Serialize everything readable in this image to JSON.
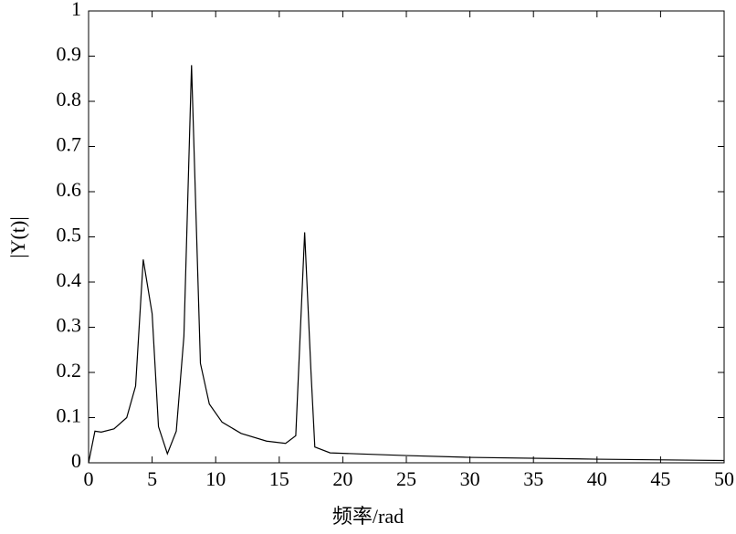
{
  "chart_data": {
    "type": "line",
    "y_label": "|Y(t)|",
    "x_label": "频率/rad",
    "x": [
      0,
      0.5,
      1,
      2,
      3,
      3.7,
      4.3,
      5,
      5.5,
      6.2,
      6.9,
      7.5,
      8.1,
      8.8,
      9.5,
      10.5,
      12,
      14,
      15.5,
      16.3,
      17,
      17.5,
      17.8,
      19,
      25,
      30,
      40,
      50
    ],
    "series": [
      {
        "color": "#000000",
        "values": [
          0,
          0.07,
          0.068,
          0.075,
          0.1,
          0.17,
          0.45,
          0.33,
          0.08,
          0.02,
          0.07,
          0.28,
          0.88,
          0.22,
          0.13,
          0.09,
          0.065,
          0.048,
          0.043,
          0.06,
          0.51,
          0.2,
          0.035,
          0.022,
          0.016,
          0.012,
          0.008,
          0.005
        ]
      }
    ],
    "xlim": [
      0,
      50
    ],
    "xticks": [
      0,
      5,
      10,
      15,
      20,
      25,
      30,
      35,
      40,
      45,
      50
    ],
    "ylim": [
      0,
      1
    ],
    "yticks": [
      0,
      0.1,
      0.2,
      0.3,
      0.4,
      0.5,
      0.6,
      0.7,
      0.8,
      0.9,
      1
    ],
    "grid": false
  }
}
